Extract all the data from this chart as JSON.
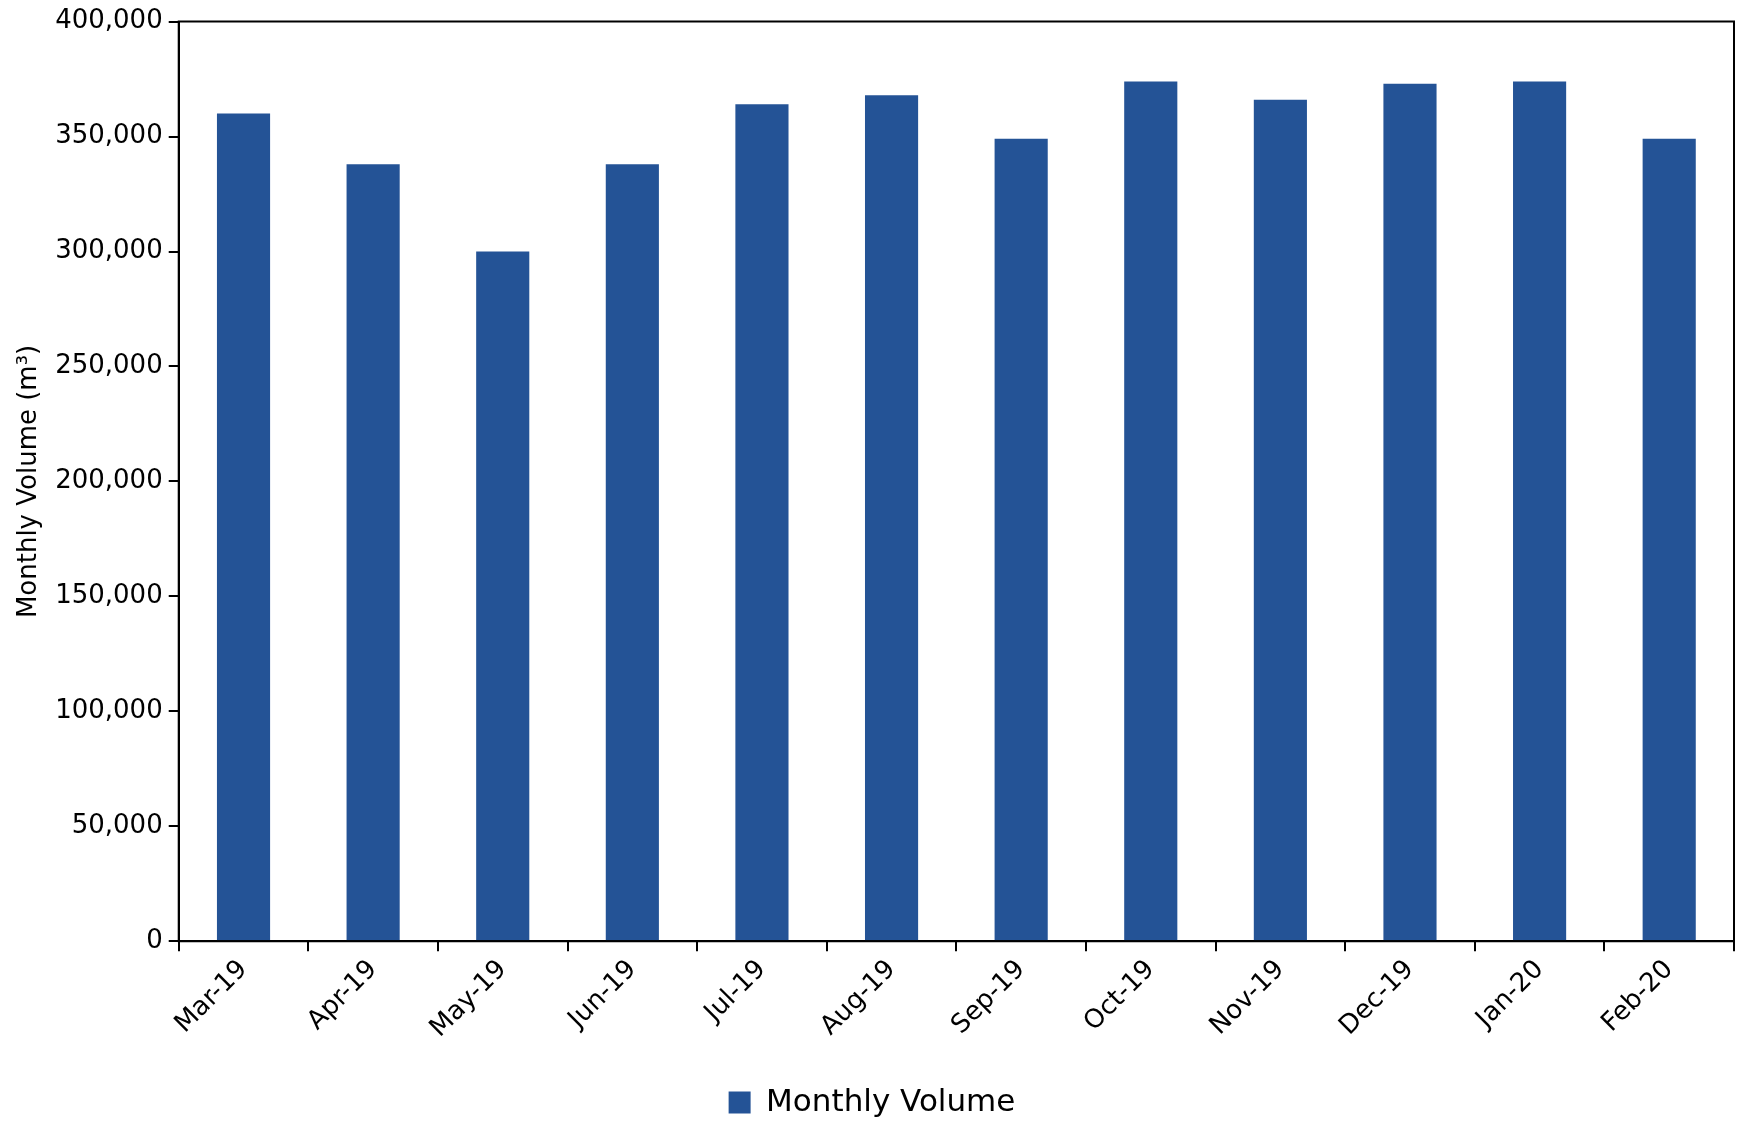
{
  "chart_data": {
    "type": "bar",
    "ylabel": "Monthly Volume (m³)",
    "categories": [
      "Mar-19",
      "Apr-19",
      "May-19",
      "Jun-19",
      "Jul-19",
      "Aug-19",
      "Sep-19",
      "Oct-19",
      "Nov-19",
      "Dec-19",
      "Jan-20",
      "Feb-20"
    ],
    "series": [
      {
        "name": "Monthly Volume",
        "color": "#245396",
        "values": [
          360000,
          338000,
          300000,
          338000,
          364000,
          368000,
          349000,
          374000,
          366000,
          373000,
          374000,
          349000
        ]
      }
    ],
    "ylim": [
      0,
      400000
    ],
    "yticks": [
      0,
      {
        "value": 50000,
        "label": "50,000"
      },
      {
        "value": 100000,
        "label": "100,000"
      },
      {
        "value": 150000,
        "label": "150,000"
      },
      {
        "value": 200000,
        "label": "200,000"
      },
      {
        "value": 250000,
        "label": "250,000"
      },
      {
        "value": 300000,
        "label": "300,000"
      },
      {
        "value": 350000,
        "label": "350,000"
      },
      {
        "value": 400000,
        "label": "400,000"
      }
    ],
    "grid": false,
    "legend": "bottom"
  }
}
